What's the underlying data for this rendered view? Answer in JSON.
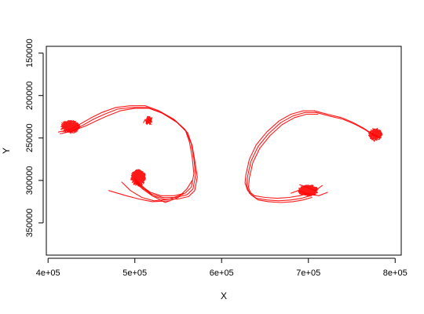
{
  "chart_data": {
    "type": "line",
    "title": "",
    "xlabel": "X",
    "ylabel": "Y",
    "xlim": [
      398000,
      807000
    ],
    "ylim": [
      388000,
      142000
    ],
    "y_reversed": true,
    "x_ticks": [
      400000,
      500000,
      600000,
      700000,
      800000
    ],
    "x_tick_labels": [
      "4e+05",
      "5e+05",
      "6e+05",
      "7e+05",
      "8e+05"
    ],
    "y_ticks": [
      150000,
      200000,
      250000,
      300000,
      350000
    ],
    "y_tick_labels": [
      "150000",
      "200000",
      "250000",
      "300000",
      "350000"
    ],
    "grid": false,
    "legend": "none",
    "series_color": "#ff0000",
    "series": [
      {
        "x": [
          412000,
          425000,
          438000,
          450000,
          462000,
          478000,
          495000,
          512000,
          528000,
          545000,
          558000,
          563000,
          566000,
          568000,
          565000,
          558000,
          545000,
          530000,
          518000,
          508000,
          500000
        ],
        "y": [
          243000,
          240000,
          233000,
          226000,
          220000,
          214000,
          212000,
          212000,
          218000,
          228000,
          240000,
          255000,
          272000,
          292000,
          308000,
          315000,
          318000,
          318000,
          314000,
          307000,
          300000
        ]
      },
      {
        "x": [
          414000,
          427000,
          440000,
          452000,
          465000,
          480000,
          497000,
          514000,
          530000,
          547000,
          559000,
          565000,
          568000,
          570000,
          567000,
          560000,
          547000,
          532000,
          519000,
          509000,
          501000
        ],
        "y": [
          245000,
          242000,
          235000,
          228000,
          222000,
          216000,
          214000,
          214000,
          220000,
          230000,
          242000,
          257000,
          274000,
          294000,
          310000,
          317000,
          320000,
          320000,
          316000,
          309000,
          302000
        ]
      },
      {
        "x": [
          418000,
          430000,
          443000,
          455000,
          468000,
          483000,
          500000,
          516000,
          532000,
          549000,
          561000,
          566000,
          569000,
          572000,
          569000,
          562000,
          549000,
          534000,
          520000,
          510000,
          502000
        ],
        "y": [
          244000,
          241000,
          236000,
          230000,
          224000,
          218000,
          215000,
          215000,
          221000,
          232000,
          244000,
          259000,
          276000,
          296000,
          312000,
          319000,
          322000,
          322000,
          318000,
          311000,
          304000
        ]
      },
      {
        "x": [
          500000,
          510000,
          520000,
          535000,
          550000,
          560000,
          566000
        ],
        "y": [
          298000,
          308000,
          318000,
          326000,
          320000,
          310000,
          300000
        ]
      },
      {
        "x": [
          485000,
          495000,
          508000,
          522000,
          540000,
          556000
        ],
        "y": [
          302000,
          312000,
          320000,
          324000,
          322000,
          316000
        ]
      },
      {
        "x": [
          470000,
          490000,
          505000,
          520000,
          540000
        ],
        "y": [
          312000,
          318000,
          322000,
          325000,
          324000
        ]
      },
      {
        "x": [
          510000,
          512000,
          514000,
          516000,
          518000,
          520000
        ],
        "y": [
          232000,
          228000,
          234000,
          228000,
          230000,
          226000
        ]
      },
      {
        "x": [
          707000,
          694000,
          680000,
          666000,
          652000,
          640000,
          632000,
          628000,
          627000,
          630000,
          638000,
          650000,
          664000,
          678000,
          690000,
          700000
        ],
        "y": [
          218000,
          218000,
          222000,
          230000,
          243000,
          258000,
          275000,
          293000,
          303000,
          312000,
          318000,
          320000,
          321000,
          320000,
          318000,
          315000
        ]
      },
      {
        "x": [
          709000,
          696000,
          682000,
          668000,
          654000,
          642000,
          634000,
          630000,
          629000,
          632000,
          640000,
          652000,
          666000,
          680000,
          692000,
          702000
        ],
        "y": [
          220000,
          220000,
          224000,
          232000,
          245000,
          260000,
          277000,
          295000,
          306000,
          315000,
          321000,
          323000,
          324000,
          323000,
          321000,
          318000
        ]
      },
      {
        "x": [
          711000,
          698000,
          684000,
          670000,
          656000,
          644000,
          636000,
          632000,
          631000,
          634000,
          642000,
          654000,
          668000,
          682000,
          694000,
          704000
        ],
        "y": [
          222000,
          222000,
          226000,
          234000,
          247000,
          262000,
          279000,
          297000,
          308000,
          317000,
          323000,
          325000,
          326000,
          325000,
          323000,
          320000
        ]
      },
      {
        "x": [
          707000,
          722000,
          738000,
          752000,
          763000,
          772000,
          780000
        ],
        "y": [
          218000,
          222000,
          226000,
          232000,
          238000,
          244000,
          248000
        ]
      },
      {
        "x": [
          709000,
          724000,
          740000,
          754000,
          765000,
          774000,
          782000
        ],
        "y": [
          220000,
          224000,
          228000,
          234000,
          240000,
          246000,
          250000
        ]
      },
      {
        "x": [
          680000,
          688000,
          700000,
          712000,
          722000
        ],
        "y": [
          315000,
          312000,
          316000,
          318000,
          314000
        ]
      },
      {
        "x": [
          690000,
          698000,
          708000,
          716000
        ],
        "y": [
          305000,
          308000,
          312000,
          306000
        ]
      }
    ],
    "clusters": [
      {
        "cx": 425000,
        "cy": 237000,
        "rx": 12000,
        "ry": 8000,
        "n": 140
      },
      {
        "cx": 504000,
        "cy": 297000,
        "rx": 9000,
        "ry": 10000,
        "n": 260
      },
      {
        "cx": 516000,
        "cy": 230000,
        "rx": 4000,
        "ry": 6000,
        "n": 60
      },
      {
        "cx": 700000,
        "cy": 312000,
        "rx": 12000,
        "ry": 7000,
        "n": 180
      },
      {
        "cx": 777000,
        "cy": 246000,
        "rx": 8000,
        "ry": 8000,
        "n": 110
      }
    ]
  }
}
